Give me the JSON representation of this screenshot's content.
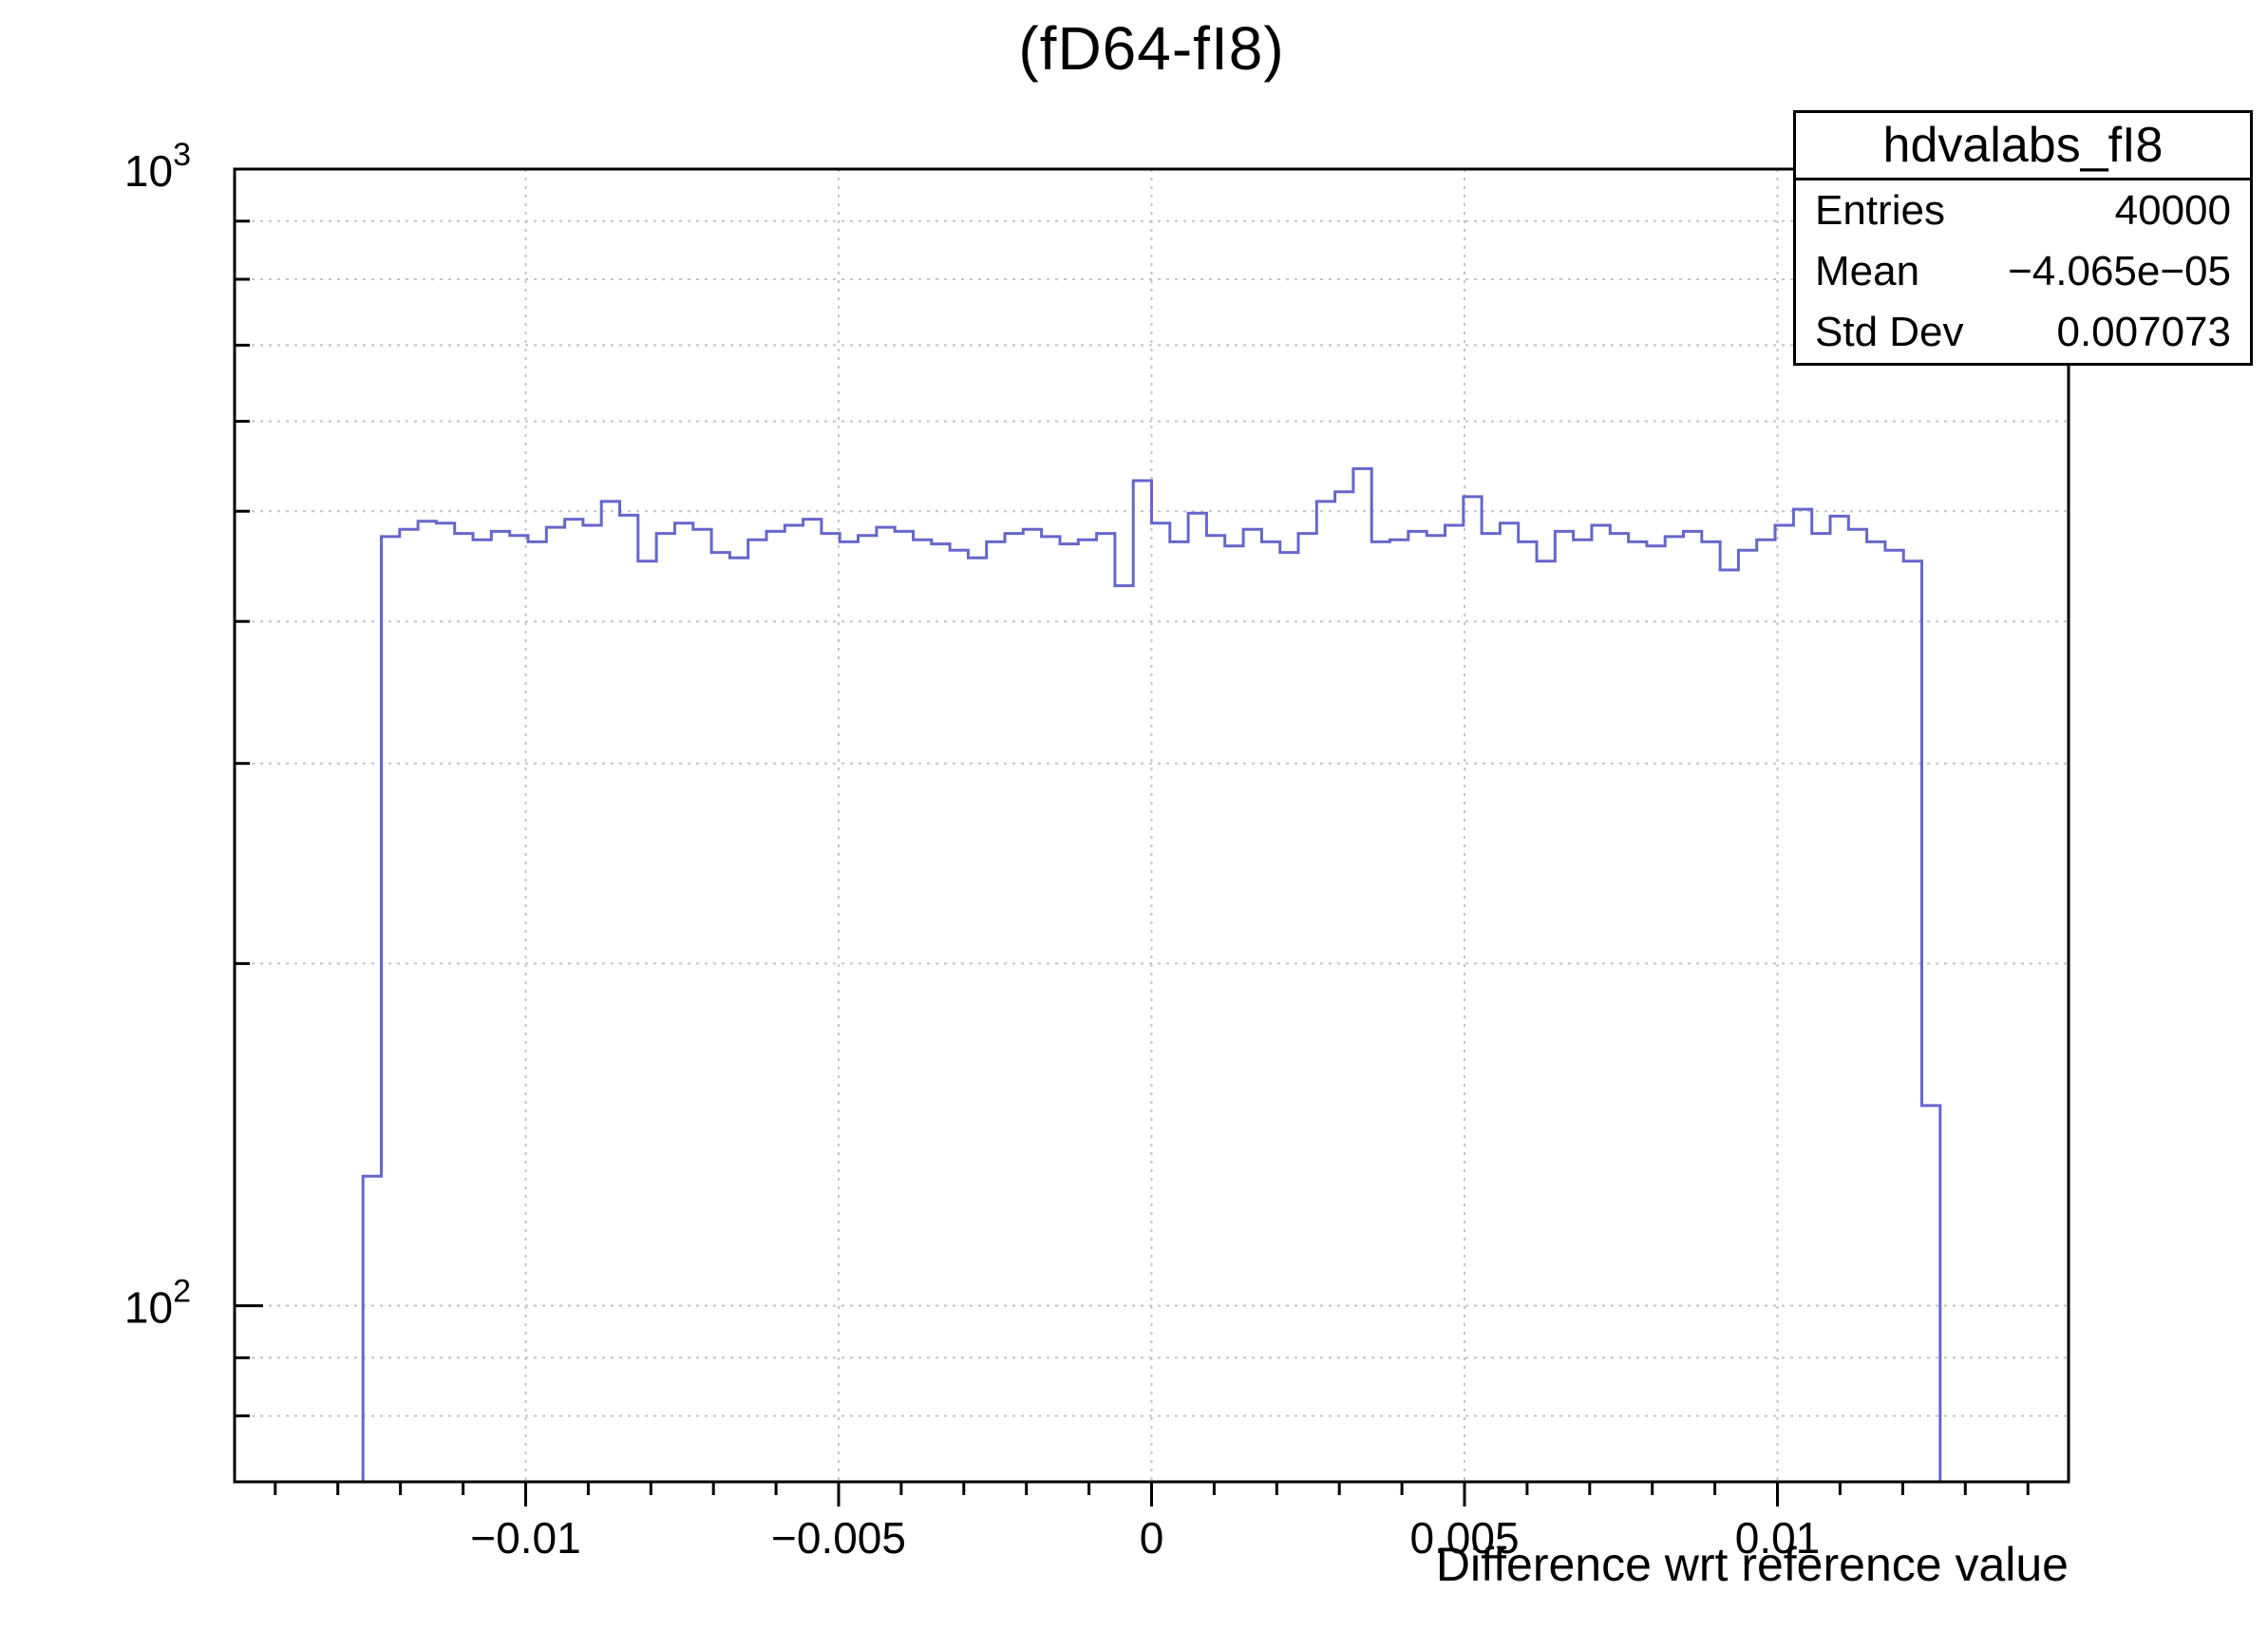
{
  "page": {
    "title": "(fD64-fI8)"
  },
  "stats_box": {
    "title": "hdvalabs_fI8",
    "rows": [
      {
        "label": "Entries",
        "value": "40000"
      },
      {
        "label": "Mean",
        "value": "−4.065e−05"
      },
      {
        "label": "Std Dev",
        "value": "0.007073"
      }
    ]
  },
  "chart_data": {
    "type": "bar",
    "subtype": "step-histogram",
    "title": "(fD64-fI8)",
    "xlabel": "Difference wrt reference value",
    "ylabel": "",
    "x_scale": "linear",
    "y_scale": "log",
    "xlim": [
      -0.01465,
      0.01465
    ],
    "ylim": [
      70,
      1000
    ],
    "grid": true,
    "legend_position": "none",
    "x_major_ticks": [
      -0.01,
      -0.005,
      0,
      0.005,
      0.01
    ],
    "x_major_tick_labels": [
      "−0.01",
      "−0.005",
      "0",
      "0.005",
      "0.01"
    ],
    "x_minor_tick_step": 0.001,
    "y_major_ticks": [
      100,
      1000
    ],
    "y_major_tick_labels": [
      {
        "value": 100,
        "base": "10",
        "exp": "2"
      },
      {
        "value": 1000,
        "base": "10",
        "exp": "3"
      }
    ],
    "y_grid_values": [
      80,
      90,
      100,
      200,
      300,
      400,
      500,
      600,
      700,
      800,
      900,
      1000
    ],
    "line_color": "#6666cc",
    "frame_color": "#000000",
    "grid_color": "#c4c4c4",
    "hist": {
      "xmin": -0.01465,
      "bin_width": 0.000293,
      "counts": [
        0,
        0,
        0,
        0,
        0,
        0,
        0,
        130,
        475,
        482,
        490,
        488,
        478,
        472,
        480,
        476,
        470,
        484,
        492,
        486,
        510,
        496,
        452,
        478,
        488,
        482,
        460,
        455,
        472,
        480,
        486,
        492,
        478,
        470,
        476,
        484,
        480,
        472,
        468,
        462,
        455,
        470,
        478,
        482,
        475,
        468,
        472,
        478,
        430,
        532,
        488,
        470,
        498,
        476,
        466,
        482,
        470,
        460,
        478,
        510,
        520,
        545,
        470,
        472,
        480,
        476,
        486,
        515,
        478,
        488,
        470,
        452,
        480,
        472,
        486,
        478,
        470,
        466,
        475,
        480,
        470,
        444,
        462,
        472,
        486,
        502,
        478,
        495,
        482,
        470,
        462,
        452,
        150,
        0,
        0,
        0,
        0,
        0,
        0,
        0
      ]
    }
  }
}
